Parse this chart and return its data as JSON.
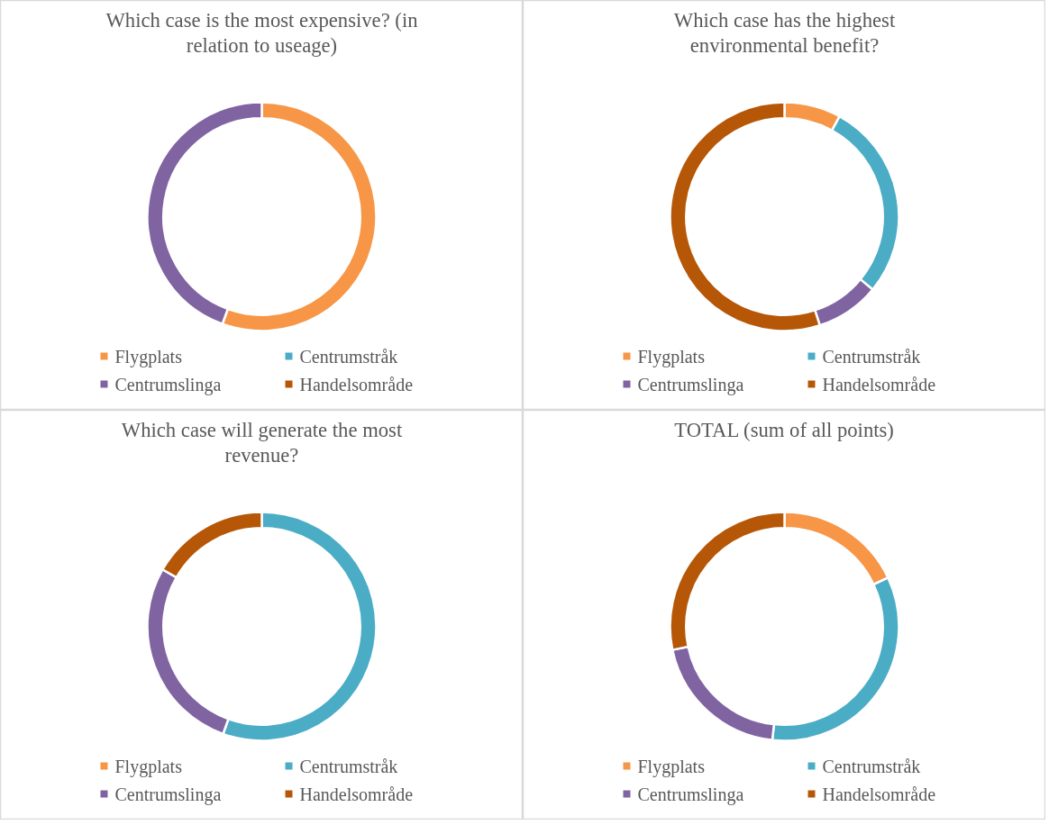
{
  "chart_data": [
    {
      "type": "donut",
      "title": "Which case is the most expensive? (in relation to useage)",
      "categories": [
        "Flygplats",
        "Centrumstråk",
        "Centrumslinga",
        "Handelsområde"
      ],
      "values": [
        55.6,
        0,
        44.4,
        0
      ],
      "colors": [
        "#f79646",
        "#4bacc6",
        "#8064a2",
        "#b65708"
      ],
      "legend": "bottom"
    },
    {
      "type": "donut",
      "title": "Which case has the highest environmental benefit?",
      "categories": [
        "Flygplats",
        "Centrumstråk",
        "Centrumslinga",
        "Handelsområde"
      ],
      "values": [
        8,
        28,
        9,
        55
      ],
      "colors": [
        "#f79646",
        "#4bacc6",
        "#8064a2",
        "#b65708"
      ],
      "legend": "bottom"
    },
    {
      "type": "donut",
      "title": "Which case will generate the most revenue?",
      "categories": [
        "Flygplats",
        "Centrumstråk",
        "Centrumslinga",
        "Handelsområde"
      ],
      "values": [
        0,
        55.5,
        27.8,
        16.7
      ],
      "colors": [
        "#f79646",
        "#4bacc6",
        "#8064a2",
        "#b65708"
      ],
      "legend": "bottom"
    },
    {
      "type": "donut",
      "title": "TOTAL (sum of all points)",
      "categories": [
        "Flygplats",
        "Centrumstråk",
        "Centrumslinga",
        "Handelsområde"
      ],
      "values": [
        18,
        33.7,
        20,
        28.3
      ],
      "colors": [
        "#f79646",
        "#4bacc6",
        "#8064a2",
        "#b65708"
      ],
      "legend": "bottom"
    }
  ]
}
